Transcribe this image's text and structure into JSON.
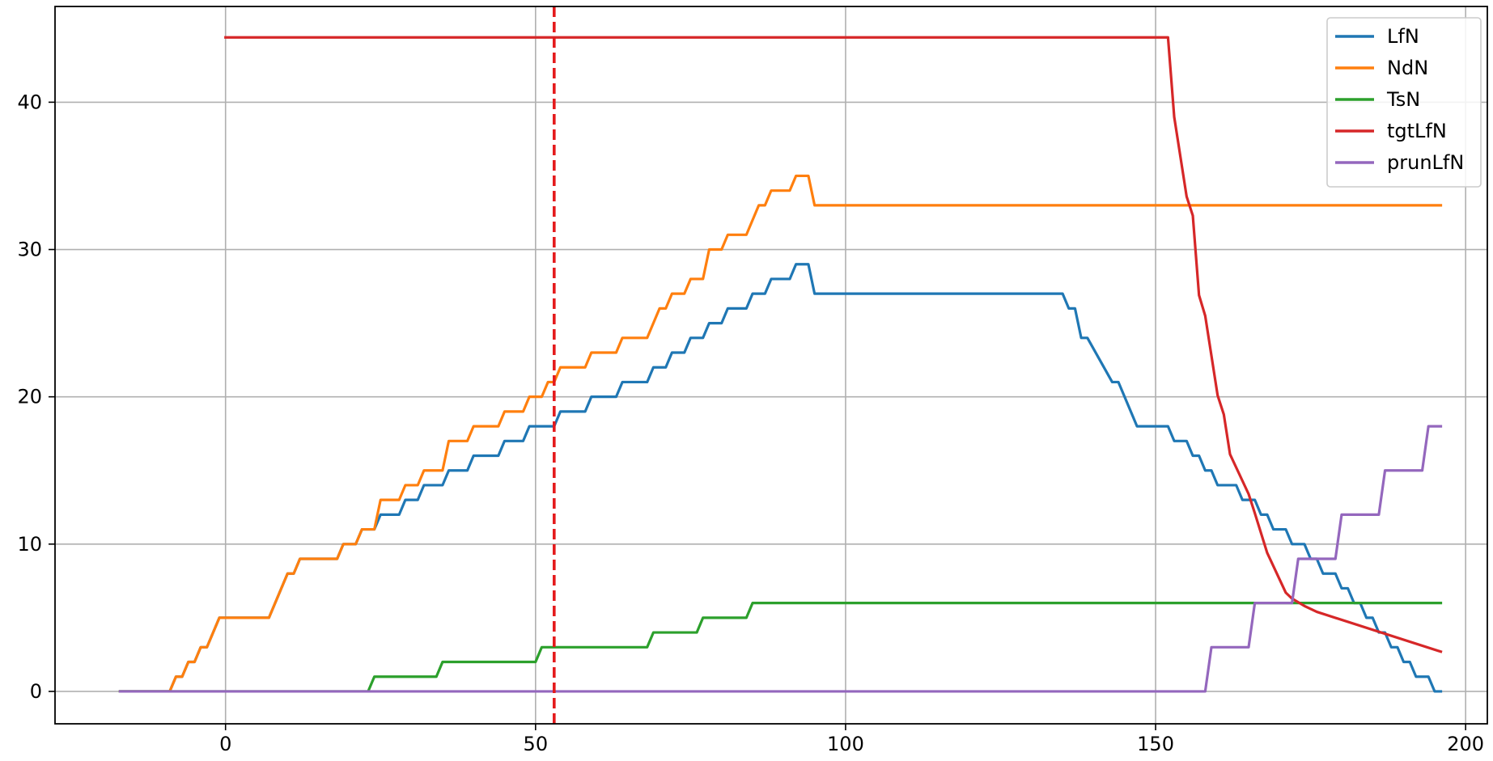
{
  "chart_data": {
    "type": "line",
    "title": "",
    "xlabel": "",
    "ylabel": "",
    "xlim": [
      -27.5,
      203.5
    ],
    "ylim": [
      -2.2,
      46.5
    ],
    "xticks": [
      0,
      50,
      100,
      150,
      200
    ],
    "yticks": [
      0,
      10,
      20,
      30,
      40
    ],
    "grid": true,
    "legend_placement": "top-right",
    "vline": {
      "x": 53,
      "color": "#e41a1c",
      "style": "dashed"
    },
    "series": [
      {
        "name": "LfN",
        "color": "#1f77b4",
        "points": [
          [
            -17,
            0
          ],
          [
            -9,
            0
          ],
          [
            -8,
            1
          ],
          [
            -7,
            1
          ],
          [
            -6,
            2
          ],
          [
            -5,
            2
          ],
          [
            -4,
            3
          ],
          [
            -3,
            3
          ],
          [
            -1,
            5
          ],
          [
            7,
            5
          ],
          [
            10,
            8
          ],
          [
            11,
            8
          ],
          [
            12,
            9
          ],
          [
            18,
            9
          ],
          [
            19,
            10
          ],
          [
            21,
            10
          ],
          [
            22,
            11
          ],
          [
            24,
            11
          ],
          [
            25,
            12
          ],
          [
            28,
            12
          ],
          [
            29,
            13
          ],
          [
            31,
            13
          ],
          [
            32,
            14
          ],
          [
            35,
            14
          ],
          [
            36,
            15
          ],
          [
            39,
            15
          ],
          [
            40,
            16
          ],
          [
            44,
            16
          ],
          [
            45,
            17
          ],
          [
            48,
            17
          ],
          [
            49,
            18
          ],
          [
            53,
            18
          ],
          [
            54,
            19
          ],
          [
            58,
            19
          ],
          [
            59,
            20
          ],
          [
            63,
            20
          ],
          [
            64,
            21
          ],
          [
            68,
            21
          ],
          [
            69,
            22
          ],
          [
            71,
            22
          ],
          [
            72,
            23
          ],
          [
            74,
            23
          ],
          [
            75,
            24
          ],
          [
            77,
            24
          ],
          [
            78,
            25
          ],
          [
            80,
            25
          ],
          [
            81,
            26
          ],
          [
            84,
            26
          ],
          [
            85,
            27
          ],
          [
            87,
            27
          ],
          [
            88,
            28
          ],
          [
            91,
            28
          ],
          [
            92,
            29
          ],
          [
            94,
            29
          ],
          [
            95,
            27
          ],
          [
            135,
            27
          ],
          [
            136,
            26
          ],
          [
            137,
            26
          ],
          [
            138,
            24
          ],
          [
            139,
            24
          ],
          [
            143,
            21
          ],
          [
            144,
            21
          ],
          [
            147,
            18
          ],
          [
            152,
            18
          ],
          [
            153,
            17
          ],
          [
            155,
            17
          ],
          [
            156,
            16
          ],
          [
            157,
            16
          ],
          [
            158,
            15
          ],
          [
            159,
            15
          ],
          [
            160,
            14
          ],
          [
            163,
            14
          ],
          [
            164,
            13
          ],
          [
            166,
            13
          ],
          [
            167,
            12
          ],
          [
            168,
            12
          ],
          [
            169,
            11
          ],
          [
            171,
            11
          ],
          [
            172,
            10
          ],
          [
            174,
            10
          ],
          [
            175,
            9
          ],
          [
            176,
            9
          ],
          [
            177,
            8
          ],
          [
            179,
            8
          ],
          [
            180,
            7
          ],
          [
            181,
            7
          ],
          [
            182,
            6
          ],
          [
            183,
            6
          ],
          [
            184,
            5
          ],
          [
            185,
            5
          ],
          [
            186,
            4
          ],
          [
            187,
            4
          ],
          [
            188,
            3
          ],
          [
            189,
            3
          ],
          [
            190,
            2
          ],
          [
            191,
            2
          ],
          [
            192,
            1
          ],
          [
            194,
            1
          ],
          [
            195,
            0
          ],
          [
            196,
            0
          ]
        ]
      },
      {
        "name": "NdN",
        "color": "#ff7f0e",
        "points": [
          [
            -17,
            0
          ],
          [
            -9,
            0
          ],
          [
            -8,
            1
          ],
          [
            -7,
            1
          ],
          [
            -6,
            2
          ],
          [
            -5,
            2
          ],
          [
            -4,
            3
          ],
          [
            -3,
            3
          ],
          [
            -1,
            5
          ],
          [
            7,
            5
          ],
          [
            10,
            8
          ],
          [
            11,
            8
          ],
          [
            12,
            9
          ],
          [
            18,
            9
          ],
          [
            19,
            10
          ],
          [
            21,
            10
          ],
          [
            22,
            11
          ],
          [
            24,
            11
          ],
          [
            25,
            13
          ],
          [
            28,
            13
          ],
          [
            29,
            14
          ],
          [
            31,
            14
          ],
          [
            32,
            15
          ],
          [
            35,
            15
          ],
          [
            36,
            17
          ],
          [
            39,
            17
          ],
          [
            40,
            18
          ],
          [
            44,
            18
          ],
          [
            45,
            19
          ],
          [
            48,
            19
          ],
          [
            49,
            20
          ],
          [
            51,
            20
          ],
          [
            52,
            21
          ],
          [
            53,
            21
          ],
          [
            54,
            22
          ],
          [
            58,
            22
          ],
          [
            59,
            23
          ],
          [
            63,
            23
          ],
          [
            64,
            24
          ],
          [
            68,
            24
          ],
          [
            70,
            26
          ],
          [
            71,
            26
          ],
          [
            72,
            27
          ],
          [
            74,
            27
          ],
          [
            75,
            28
          ],
          [
            77,
            28
          ],
          [
            78,
            30
          ],
          [
            80,
            30
          ],
          [
            81,
            31
          ],
          [
            84,
            31
          ],
          [
            86,
            33
          ],
          [
            87,
            33
          ],
          [
            88,
            34
          ],
          [
            91,
            34
          ],
          [
            92,
            35
          ],
          [
            94,
            35
          ],
          [
            95,
            33
          ],
          [
            196,
            33
          ]
        ]
      },
      {
        "name": "TsN",
        "color": "#2ca02c",
        "points": [
          [
            -17,
            0
          ],
          [
            23,
            0
          ],
          [
            24,
            1
          ],
          [
            34,
            1
          ],
          [
            35,
            2
          ],
          [
            50,
            2
          ],
          [
            51,
            3
          ],
          [
            68,
            3
          ],
          [
            69,
            4
          ],
          [
            76,
            4
          ],
          [
            77,
            5
          ],
          [
            84,
            5
          ],
          [
            85,
            6
          ],
          [
            196,
            6
          ]
        ]
      },
      {
        "name": "tgtLfN",
        "color": "#d62728",
        "points": [
          [
            0,
            44.4
          ],
          [
            152,
            44.4
          ],
          [
            153,
            39
          ],
          [
            155,
            33.6
          ],
          [
            156,
            32.3
          ],
          [
            157,
            26.9
          ],
          [
            158,
            25.5
          ],
          [
            160,
            20.1
          ],
          [
            161,
            18.8
          ],
          [
            162,
            16.1
          ],
          [
            165,
            13.4
          ],
          [
            166,
            12.1
          ],
          [
            168,
            9.4
          ],
          [
            171,
            6.7
          ],
          [
            172,
            6.3
          ],
          [
            174,
            5.8
          ],
          [
            176,
            5.4
          ],
          [
            196,
            2.7
          ]
        ]
      },
      {
        "name": "prunLfN",
        "color": "#9467bd",
        "points": [
          [
            -17,
            0
          ],
          [
            158,
            0
          ],
          [
            159,
            3
          ],
          [
            165,
            3
          ],
          [
            166,
            6
          ],
          [
            172,
            6
          ],
          [
            173,
            9
          ],
          [
            179,
            9
          ],
          [
            180,
            12
          ],
          [
            186,
            12
          ],
          [
            187,
            15
          ],
          [
            193,
            15
          ],
          [
            194,
            18
          ],
          [
            196,
            18
          ]
        ]
      }
    ]
  }
}
